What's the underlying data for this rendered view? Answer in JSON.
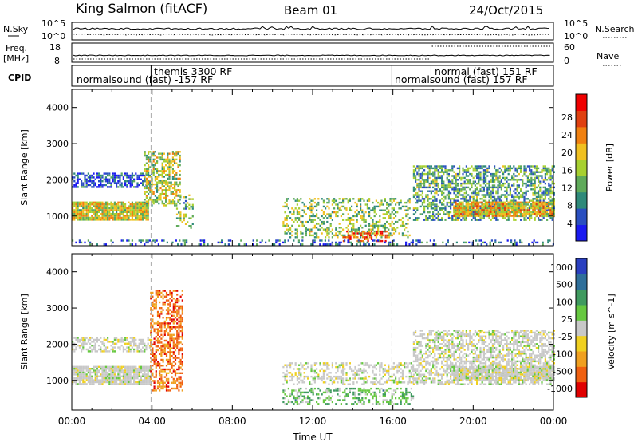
{
  "header": {
    "station": "King Salmon (fitACF)",
    "beam": "Beam 01",
    "date": "24/Oct/2015"
  },
  "strips": {
    "nsky_label": "N.Sky",
    "nsky_ticks": [
      "10^5",
      "10^0"
    ],
    "nsearch_label": "N.Search",
    "nsearch_ticks": [
      "10^5",
      "10^0"
    ],
    "freq_label": "Freq.",
    "freq_unit": "[MHz]",
    "freq_ticks": [
      "18",
      "8"
    ],
    "nave_label": "Nave",
    "nave_ticks": [
      "60",
      "0"
    ],
    "cpid_label": "CPID",
    "cpid_segments": [
      {
        "label": "normalsound (fast) -157 RF",
        "start": 0.0,
        "end": 15.95
      },
      {
        "label": "themis 3300 RF",
        "start": 3.95,
        "end": 4.05
      },
      {
        "label": "normalsound (fast) 157 RF",
        "start": 15.95,
        "end": 17.9
      },
      {
        "label": "normal (fast) 151 RF",
        "start": 17.9,
        "end": 24.0
      }
    ],
    "cpid_boundaries": [
      3.95,
      15.95,
      17.9
    ]
  },
  "chart_data": [
    {
      "type": "heatmap",
      "panel": "power",
      "ylabel": "Slant Range [km]",
      "xlim": [
        0,
        24
      ],
      "ylim": [
        180,
        4500
      ],
      "yticks": [
        "1000",
        "2000",
        "3000",
        "4000"
      ],
      "colorbar_label": "Power [dB]",
      "colorbar_ticks": [
        "4",
        "8",
        "12",
        "16",
        "20",
        "24",
        "28"
      ],
      "colorbar_colors": [
        "#1a1af0",
        "#2a4fc0",
        "#2f8a7a",
        "#5faa5a",
        "#a7d030",
        "#f0c020",
        "#f08010",
        "#e04010",
        "#f00000"
      ],
      "bands": [
        {
          "t0": 0.0,
          "t1": 3.8,
          "r0": 900,
          "r1": 1400,
          "level": 0.55,
          "density": 0.9
        },
        {
          "t0": 0.0,
          "t1": 4.0,
          "r0": 1800,
          "r1": 2200,
          "level": 0.15,
          "density": 0.6
        },
        {
          "t0": 3.6,
          "t1": 5.4,
          "r0": 1300,
          "r1": 2800,
          "level": 0.5,
          "density": 0.55
        },
        {
          "t0": 5.2,
          "t1": 6.0,
          "r0": 600,
          "r1": 1600,
          "level": 0.4,
          "density": 0.3
        },
        {
          "t0": 10.5,
          "t1": 16.8,
          "r0": 400,
          "r1": 1500,
          "level": 0.45,
          "density": 0.35
        },
        {
          "t0": 13.5,
          "t1": 15.8,
          "r0": 300,
          "r1": 600,
          "level": 0.85,
          "density": 0.45
        },
        {
          "t0": 17.0,
          "t1": 24.0,
          "r0": 900,
          "r1": 2400,
          "level": 0.35,
          "density": 0.55
        },
        {
          "t0": 19.0,
          "t1": 24.0,
          "r0": 1000,
          "r1": 1400,
          "level": 0.6,
          "density": 0.85
        },
        {
          "t0": 0.0,
          "t1": 24.0,
          "r0": 200,
          "r1": 350,
          "level": 0.2,
          "density": 0.25
        }
      ]
    },
    {
      "type": "heatmap",
      "panel": "velocity",
      "ylabel": "Slant Range [km]",
      "xlabel": "Time UT",
      "xlim": [
        0,
        24
      ],
      "ylim": [
        180,
        4500
      ],
      "xticks": [
        "00:00",
        "04:00",
        "08:00",
        "12:00",
        "16:00",
        "20:00",
        "00:00"
      ],
      "yticks": [
        "1000",
        "2000",
        "3000",
        "4000"
      ],
      "colorbar_label": "Velocity [m s^-1]",
      "colorbar_ticks": [
        "1000",
        "500",
        "100",
        "25",
        "-25",
        "-100",
        "-500",
        "-1000"
      ],
      "colorbar_colors": [
        "#2a3fc0",
        "#2f6f9a",
        "#3f9a5f",
        "#66c840",
        "#c8c8c8",
        "#f0d020",
        "#f0a020",
        "#f06010",
        "#e00000"
      ],
      "bands": [
        {
          "t0": 0.0,
          "t1": 3.9,
          "r0": 900,
          "r1": 1400,
          "v": 0.0,
          "density": 0.9
        },
        {
          "t0": 0.0,
          "t1": 4.0,
          "r0": 1800,
          "r1": 2200,
          "v": 0.0,
          "density": 0.55
        },
        {
          "t0": 3.9,
          "t1": 5.5,
          "r0": 700,
          "r1": 3500,
          "v": -0.7,
          "density": 0.5
        },
        {
          "t0": 10.5,
          "t1": 17.0,
          "r0": 900,
          "r1": 1500,
          "v": 0.0,
          "density": 0.4
        },
        {
          "t0": 10.5,
          "t1": 17.0,
          "r0": 350,
          "r1": 800,
          "v": 0.3,
          "density": 0.35
        },
        {
          "t0": 17.0,
          "t1": 24.0,
          "r0": 900,
          "r1": 2400,
          "v": 0.0,
          "density": 0.55
        },
        {
          "t0": 19.0,
          "t1": 24.0,
          "r0": 1000,
          "r1": 1400,
          "v": 0.0,
          "density": 0.85
        }
      ]
    }
  ]
}
